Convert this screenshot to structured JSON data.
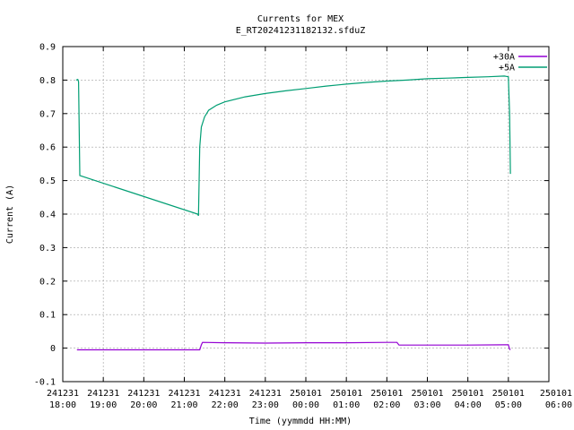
{
  "chart_data": {
    "type": "line",
    "title": "Currents for MEX",
    "subtitle": "E_RT20241231182132.sfduZ",
    "xlabel": "Time (yymmdd HH:MM)",
    "ylabel": "Current (A)",
    "ylim": [
      -0.1,
      0.9
    ],
    "yticks": [
      "-0.1",
      "0",
      "0.1",
      "0.2",
      "0.3",
      "0.4",
      "0.5",
      "0.6",
      "0.7",
      "0.8",
      "0.9"
    ],
    "xlim_hours": [
      18.0,
      30.0
    ],
    "xticks": [
      {
        "date": "241231",
        "time": "18:00"
      },
      {
        "date": "241231",
        "time": "19:00"
      },
      {
        "date": "241231",
        "time": "20:00"
      },
      {
        "date": "241231",
        "time": "21:00"
      },
      {
        "date": "241231",
        "time": "22:00"
      },
      {
        "date": "241231",
        "time": "23:00"
      },
      {
        "date": "250101",
        "time": "00:00"
      },
      {
        "date": "250101",
        "time": "01:00"
      },
      {
        "date": "250101",
        "time": "02:00"
      },
      {
        "date": "250101",
        "time": "03:00"
      },
      {
        "date": "250101",
        "time": "04:00"
      },
      {
        "date": "250101",
        "time": "05:00"
      },
      {
        "date": "250101",
        "time": "06:00"
      }
    ],
    "grid": true,
    "legend_position": "top-right",
    "series": [
      {
        "name": "+30A",
        "color": "#9400d3",
        "x_hours": [
          18.35,
          21.38,
          21.42,
          21.45,
          22.0,
          23.0,
          24.0,
          25.0,
          26.0,
          26.25,
          26.3,
          27.0,
          28.0,
          28.9,
          29.0,
          29.03,
          29.05
        ],
        "y": [
          -0.005,
          -0.005,
          0.01,
          0.017,
          0.016,
          0.015,
          0.016,
          0.016,
          0.017,
          0.017,
          0.009,
          0.009,
          0.009,
          0.01,
          0.01,
          -0.003,
          -0.005
        ]
      },
      {
        "name": "+5A",
        "color": "#009e73",
        "x_hours": [
          18.33,
          18.37,
          18.39,
          18.42,
          21.33,
          21.35,
          21.38,
          21.42,
          21.5,
          21.6,
          21.8,
          22.0,
          22.5,
          23.0,
          23.5,
          24.0,
          24.5,
          25.0,
          25.5,
          26.0,
          26.5,
          27.0,
          27.5,
          28.0,
          28.5,
          28.9,
          29.0,
          29.03,
          29.05
        ],
        "y": [
          0.8,
          0.802,
          0.795,
          0.515,
          0.4,
          0.395,
          0.6,
          0.66,
          0.69,
          0.71,
          0.725,
          0.735,
          0.75,
          0.76,
          0.768,
          0.775,
          0.782,
          0.788,
          0.793,
          0.797,
          0.8,
          0.804,
          0.806,
          0.808,
          0.81,
          0.812,
          0.81,
          0.7,
          0.52
        ]
      }
    ]
  }
}
